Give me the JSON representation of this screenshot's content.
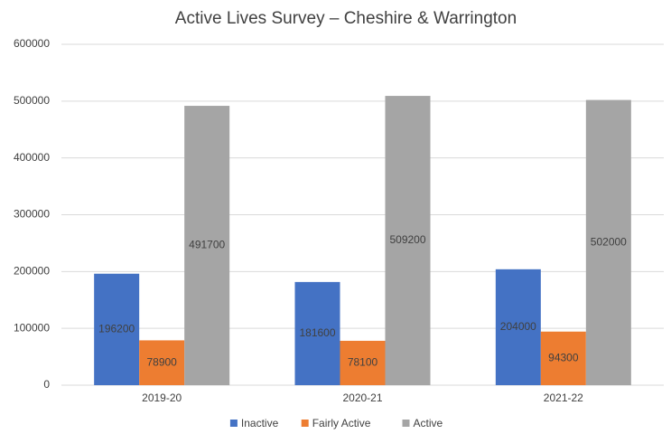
{
  "chart_data": {
    "type": "bar",
    "title": "Active Lives Survey – Cheshire & Warrington",
    "categories": [
      "2019-20",
      "2020-21",
      "2021-22"
    ],
    "series": [
      {
        "name": "Inactive",
        "color": "#4472c4",
        "values": [
          196200,
          181600,
          204000
        ]
      },
      {
        "name": "Fairly Active",
        "color": "#ed7d31",
        "values": [
          78900,
          78100,
          94300
        ]
      },
      {
        "name": "Active",
        "color": "#a5a5a5",
        "values": [
          491700,
          509200,
          502000
        ]
      }
    ],
    "ylim": [
      0,
      600000
    ],
    "yticks": [
      0,
      100000,
      200000,
      300000,
      400000,
      500000,
      600000
    ],
    "grid": true,
    "legend": "bottom"
  }
}
